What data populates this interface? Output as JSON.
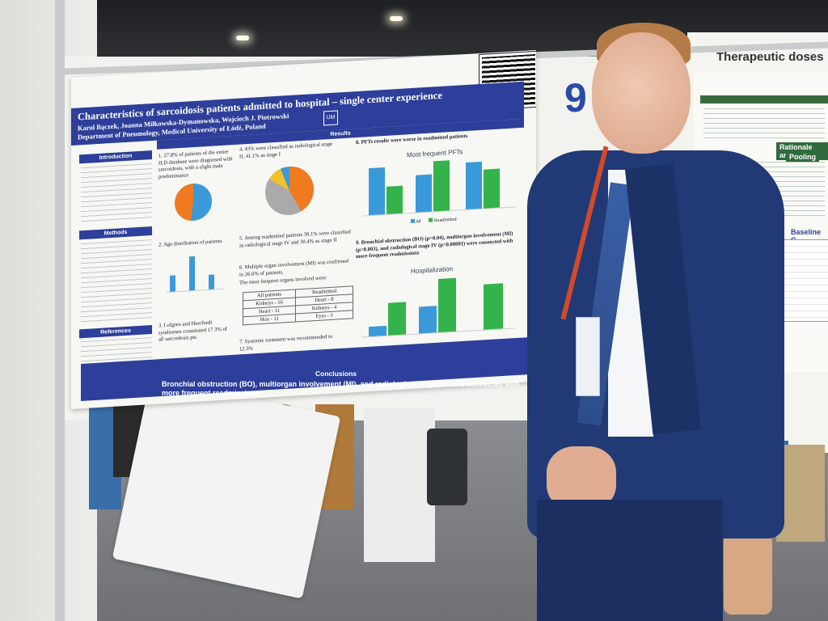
{
  "poster": {
    "title": "Characteristics of sarcoidosis patients admitted to hospital – single center experience",
    "authors": "Karol Bączek, Joanna Miłkowska-Dymanowska, Wojciech J. Piotrowski",
    "department": "Department of Pneumology, Medical University of Łódź, Poland",
    "sections": {
      "introduction": "Introduction",
      "methods": "Methods",
      "references": "References",
      "results": "Results",
      "conclusions": "Conclusions"
    },
    "results": {
      "r1": "1. 27.8% of patients of the entire ILD database were diagnosed with sarcoidosis, with a slight male predominance",
      "r2": "2. Age distribution of patients",
      "r3": "3. Lofgren and Heerfordt syndromes constituted 17.3% of all sarcoidosis pts",
      "r4": "4. 43% were classified as radiological stage II, 41.1% as stage I",
      "r5": "5. Among readmitted patients 39.1% were classified as radiological stage IV and 30.4% as stage II",
      "r6": "6. Multiple organ involvement (MI) was confirmed in 26.6% of patients.",
      "r6b": "The most frequent organs involved were:",
      "r7": "7. Systemic treatment was recommended in 12.3%",
      "r8": "8. PFTs results were worse in readmitted patients",
      "r9": "9. Bronchial obstruction (BO) (p=0.04), multiorgan involvement (MI) (p=0.003), and radiological stage IV (p=0.00001) were connected with more frequent readmissions"
    },
    "organ_table": {
      "headers": [
        "All patients",
        "Readmitted"
      ],
      "rows": [
        [
          "Kidneys - 16",
          "Heart - 8"
        ],
        [
          "Heart - 11",
          "Kidneys - 4"
        ],
        [
          "Skin - 11",
          "Eyes - 3"
        ]
      ]
    },
    "chart_titles": {
      "pfts": "Most frequent PFTs",
      "hospitalization": "Hospitalization"
    },
    "legend": {
      "all": "All",
      "readmitted": "Readmitted"
    },
    "conclusion_text": "Bronchial obstruction (BO), multiorgan involvement (MI), and radiological stage IV were connected with more frequent readmissions"
  },
  "board_number": "9",
  "right_poster": {
    "title": "Therapeutic doses",
    "section2": "Rationale and",
    "section3": "Pooling",
    "section4": "Baseline C"
  },
  "colors": {
    "poster_blue": "#2d3f9a",
    "bar_blue": "#3a9ad9",
    "bar_green": "#33b34a",
    "pie_orange": "#f07a1f",
    "suit_navy": "#213a75",
    "lanyard_red": "#d24a2a"
  },
  "chart_data": [
    {
      "type": "bar",
      "title": "Most frequent PFTs",
      "categories": [
        "",
        "",
        ""
      ],
      "series": [
        {
          "name": "All",
          "values": [
            68.0,
            53.0,
            67.0
          ]
        },
        {
          "name": "Readmitted",
          "values": [
            38.0,
            72.0,
            55.0
          ]
        }
      ]
    },
    {
      "type": "bar",
      "title": "Hospitalization",
      "categories": [
        "",
        "",
        ""
      ],
      "series": [
        {
          "name": "",
          "values": [
            10.2,
            26.6,
            0
          ]
        },
        {
          "name": "",
          "values": [
            32.3,
            53.2,
            42.8
          ]
        }
      ]
    }
  ]
}
